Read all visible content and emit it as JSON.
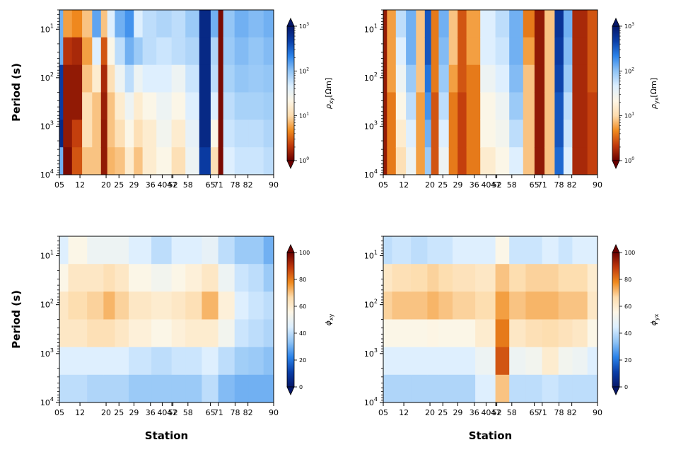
{
  "chart_data": [
    {
      "type": "heatmap",
      "panel": "rho_xy",
      "xlabel": "",
      "ylabel": "Period (s)",
      "x_tick_labels": [
        "05",
        "12",
        "20",
        "25",
        "29",
        "36",
        "40",
        "47",
        "52",
        "58",
        "65",
        "71",
        "78",
        "82",
        "90"
      ],
      "x_range": [
        5,
        90
      ],
      "y_scale": "log",
      "y_range_s": [
        4,
        10000
      ],
      "y_inverted": true,
      "y_tick_values": [
        10,
        100,
        1000,
        10000
      ],
      "colorbar": {
        "label": "ρxy[Ωm]",
        "label_main": "ρ",
        "label_sub": "xy",
        "label_unit": "[Ωm]",
        "scale": "log",
        "range": [
          1,
          1000
        ],
        "tick_values": [
          1,
          10,
          100,
          1000
        ],
        "extend": "both",
        "colormap": "orange-white-blue",
        "colors": [
          "#6b0000",
          "#c0390c",
          "#f08a1e",
          "#fddcad",
          "#fdf6e6",
          "#dcefff",
          "#8fc3f5",
          "#2b83ea",
          "#0a3ea7",
          "#05176a"
        ]
      },
      "station_rows": [
        {
          "station": 5,
          "band_values": [
            0.7,
            0.7,
            0.9,
            0.9,
            0.95,
            0.7
          ]
        },
        {
          "station": 8,
          "band_values": [
            0.25,
            0.1,
            0.05,
            0.05,
            0.05,
            0.02
          ]
        },
        {
          "station": 12,
          "band_values": [
            0.22,
            0.08,
            0.05,
            0.05,
            0.12,
            0.15
          ]
        },
        {
          "station": 16,
          "band_values": [
            0.3,
            0.25,
            0.3,
            0.35,
            0.35,
            0.3
          ]
        },
        {
          "station": 20,
          "band_values": [
            0.72,
            0.55,
            0.4,
            0.3,
            0.3,
            0.3
          ]
        },
        {
          "station": 23,
          "band_values": [
            0.3,
            0.15,
            0.08,
            0.06,
            0.05,
            0.05
          ]
        },
        {
          "station": 25,
          "band_values": [
            0.55,
            0.45,
            0.35,
            0.3,
            0.3,
            0.28
          ]
        },
        {
          "station": 29,
          "band_values": [
            0.7,
            0.6,
            0.5,
            0.4,
            0.35,
            0.3
          ]
        },
        {
          "station": 33,
          "band_values": [
            0.75,
            0.7,
            0.6,
            0.5,
            0.45,
            0.4
          ]
        },
        {
          "station": 36,
          "band_values": [
            0.55,
            0.65,
            0.5,
            0.4,
            0.35,
            0.3
          ]
        },
        {
          "station": 40,
          "band_values": [
            0.6,
            0.6,
            0.55,
            0.45,
            0.4,
            0.4
          ]
        },
        {
          "station": 47,
          "band_values": [
            0.62,
            0.58,
            0.55,
            0.5,
            0.48,
            0.45
          ]
        },
        {
          "station": 52,
          "band_values": [
            0.6,
            0.6,
            0.5,
            0.45,
            0.4,
            0.35
          ]
        },
        {
          "station": 58,
          "band_values": [
            0.65,
            0.62,
            0.58,
            0.55,
            0.52,
            0.5
          ]
        },
        {
          "station": 63,
          "band_values": [
            0.95,
            0.95,
            0.95,
            0.95,
            0.95,
            0.9
          ]
        },
        {
          "station": 67,
          "band_values": [
            0.7,
            0.62,
            0.6,
            0.55,
            0.45,
            0.35
          ]
        },
        {
          "station": 69,
          "band_values": [
            0.02,
            0.02,
            0.02,
            0.02,
            0.02,
            0.02
          ]
        },
        {
          "station": 71,
          "band_values": [
            0.66,
            0.65,
            0.63,
            0.6,
            0.58,
            0.55
          ]
        },
        {
          "station": 78,
          "band_values": [
            0.7,
            0.68,
            0.66,
            0.63,
            0.6,
            0.58
          ]
        },
        {
          "station": 82,
          "band_values": [
            0.68,
            0.66,
            0.65,
            0.63,
            0.6,
            0.58
          ]
        },
        {
          "station": 90,
          "band_values": [
            0.7,
            0.68,
            0.66,
            0.64,
            0.62,
            0.6
          ]
        }
      ]
    },
    {
      "type": "heatmap",
      "panel": "rho_yx",
      "xlabel": "",
      "ylabel": "",
      "x_tick_labels": [
        "05",
        "12",
        "20",
        "25",
        "29",
        "36",
        "40",
        "47",
        "52",
        "58",
        "65",
        "71",
        "78",
        "82",
        "90"
      ],
      "x_range": [
        5,
        90
      ],
      "y_scale": "log",
      "y_range_s": [
        4,
        10000
      ],
      "y_inverted": true,
      "y_tick_values": [
        10,
        100,
        1000,
        10000
      ],
      "colorbar": {
        "label": "ρyx[Ωm]",
        "label_main": "ρ",
        "label_sub": "yx",
        "label_unit": "[Ωm]",
        "scale": "log",
        "range": [
          1,
          1000
        ],
        "tick_values": [
          1,
          10,
          100,
          1000
        ],
        "extend": "both",
        "colormap": "orange-white-blue",
        "colors": [
          "#6b0000",
          "#c0390c",
          "#f08a1e",
          "#fddcad",
          "#fdf6e6",
          "#dcefff",
          "#8fc3f5",
          "#2b83ea",
          "#0a3ea7",
          "#05176a"
        ]
      },
      "station_rows": [
        {
          "station": 5,
          "band_values": [
            0.05,
            0.05,
            0.05,
            0.05,
            0.05,
            0.05
          ]
        },
        {
          "station": 8,
          "band_values": [
            0.25,
            0.25,
            0.25,
            0.2,
            0.2,
            0.2
          ]
        },
        {
          "station": 12,
          "band_values": [
            0.6,
            0.55,
            0.5,
            0.45,
            0.4,
            0.35
          ]
        },
        {
          "station": 16,
          "band_values": [
            0.7,
            0.7,
            0.65,
            0.6,
            0.55,
            0.5
          ]
        },
        {
          "station": 20,
          "band_values": [
            0.3,
            0.3,
            0.3,
            0.25,
            0.25,
            0.25
          ]
        },
        {
          "station": 23,
          "band_values": [
            0.85,
            0.85,
            0.8,
            0.75,
            0.7,
            0.65
          ]
        },
        {
          "station": 25,
          "band_values": [
            0.2,
            0.2,
            0.2,
            0.15,
            0.15,
            0.15
          ]
        },
        {
          "station": 29,
          "band_values": [
            0.7,
            0.68,
            0.65,
            0.6,
            0.55,
            0.5
          ]
        },
        {
          "station": 33,
          "band_values": [
            0.3,
            0.3,
            0.25,
            0.2,
            0.2,
            0.2
          ]
        },
        {
          "station": 36,
          "band_values": [
            0.15,
            0.15,
            0.15,
            0.12,
            0.12,
            0.12
          ]
        },
        {
          "station": 40,
          "band_values": [
            0.25,
            0.25,
            0.2,
            0.2,
            0.2,
            0.2
          ]
        },
        {
          "station": 47,
          "band_values": [
            0.55,
            0.55,
            0.5,
            0.45,
            0.45,
            0.4
          ]
        },
        {
          "station": 52,
          "band_values": [
            0.6,
            0.58,
            0.55,
            0.5,
            0.48,
            0.45
          ]
        },
        {
          "station": 58,
          "band_values": [
            0.7,
            0.7,
            0.68,
            0.65,
            0.6,
            0.55
          ]
        },
        {
          "station": 63,
          "band_values": [
            0.2,
            0.25,
            0.3,
            0.3,
            0.3,
            0.3
          ]
        },
        {
          "station": 67,
          "band_values": [
            0.05,
            0.05,
            0.05,
            0.05,
            0.05,
            0.05
          ]
        },
        {
          "station": 71,
          "band_values": [
            0.3,
            0.3,
            0.3,
            0.3,
            0.3,
            0.3
          ]
        },
        {
          "station": 75,
          "band_values": [
            0.92,
            0.9,
            0.88,
            0.85,
            0.85,
            0.82
          ]
        },
        {
          "station": 78,
          "band_values": [
            0.7,
            0.68,
            0.65,
            0.6,
            0.58,
            0.55
          ]
        },
        {
          "station": 82,
          "band_values": [
            0.08,
            0.08,
            0.08,
            0.08,
            0.08,
            0.08
          ]
        },
        {
          "station": 90,
          "band_values": [
            0.15,
            0.15,
            0.15,
            0.12,
            0.12,
            0.12
          ]
        }
      ]
    },
    {
      "type": "heatmap",
      "panel": "phi_xy",
      "xlabel": "Station",
      "ylabel": "Period (s)",
      "x_tick_labels": [
        "05",
        "12",
        "20",
        "25",
        "29",
        "36",
        "40",
        "47",
        "52",
        "58",
        "65",
        "71",
        "78",
        "82",
        "90"
      ],
      "x_range": [
        5,
        90
      ],
      "y_scale": "log",
      "y_range_s": [
        4,
        10000
      ],
      "y_inverted": true,
      "y_tick_values": [
        10,
        100,
        1000,
        10000
      ],
      "colorbar": {
        "label": "ϕxy",
        "label_main": "ϕ",
        "label_sub": "xy",
        "label_unit": "",
        "scale": "linear",
        "range": [
          0,
          100
        ],
        "tick_values": [
          0,
          20,
          40,
          60,
          80,
          100
        ],
        "extend": "both",
        "colormap": "blue-white-orange",
        "colors": [
          "#05176a",
          "#0a3ea7",
          "#2b83ea",
          "#8fc3f5",
          "#dcefff",
          "#fdf6e6",
          "#fddcad",
          "#f08a1e",
          "#c0390c",
          "#6b0000"
        ]
      },
      "station_rows": [
        {
          "station": 5,
          "band_values": [
            0.45,
            0.55,
            0.62,
            0.62,
            0.45,
            0.4
          ]
        },
        {
          "station": 12,
          "band_values": [
            0.55,
            0.62,
            0.66,
            0.62,
            0.45,
            0.4
          ]
        },
        {
          "station": 20,
          "band_values": [
            0.5,
            0.62,
            0.68,
            0.65,
            0.45,
            0.38
          ]
        },
        {
          "station": 25,
          "band_values": [
            0.5,
            0.65,
            0.72,
            0.65,
            0.45,
            0.38
          ]
        },
        {
          "station": 29,
          "band_values": [
            0.5,
            0.62,
            0.68,
            0.62,
            0.45,
            0.38
          ]
        },
        {
          "station": 36,
          "band_values": [
            0.45,
            0.55,
            0.62,
            0.58,
            0.42,
            0.35
          ]
        },
        {
          "station": 47,
          "band_values": [
            0.4,
            0.52,
            0.6,
            0.55,
            0.4,
            0.35
          ]
        },
        {
          "station": 52,
          "band_values": [
            0.45,
            0.55,
            0.62,
            0.58,
            0.42,
            0.35
          ]
        },
        {
          "station": 58,
          "band_values": [
            0.45,
            0.58,
            0.65,
            0.6,
            0.42,
            0.35
          ]
        },
        {
          "station": 65,
          "band_values": [
            0.48,
            0.62,
            0.72,
            0.6,
            0.45,
            0.4
          ]
        },
        {
          "station": 71,
          "band_values": [
            0.4,
            0.5,
            0.58,
            0.52,
            0.4,
            0.32
          ]
        },
        {
          "station": 78,
          "band_values": [
            0.35,
            0.42,
            0.45,
            0.42,
            0.36,
            0.3
          ]
        },
        {
          "station": 82,
          "band_values": [
            0.35,
            0.4,
            0.42,
            0.4,
            0.35,
            0.3
          ]
        },
        {
          "station": 90,
          "band_values": [
            0.3,
            0.35,
            0.4,
            0.38,
            0.33,
            0.3
          ]
        }
      ]
    },
    {
      "type": "heatmap",
      "panel": "phi_yx",
      "xlabel": "Station",
      "ylabel": "",
      "x_tick_labels": [
        "05",
        "12",
        "20",
        "25",
        "29",
        "36",
        "40",
        "47",
        "52",
        "58",
        "65",
        "71",
        "78",
        "82",
        "90"
      ],
      "x_range": [
        5,
        90
      ],
      "y_scale": "log",
      "y_range_s": [
        4,
        10000
      ],
      "y_inverted": true,
      "y_tick_values": [
        10,
        100,
        1000,
        10000
      ],
      "colorbar": {
        "label": "ϕyx",
        "label_main": "ϕ",
        "label_sub": "yx",
        "label_unit": "",
        "scale": "linear",
        "range": [
          0,
          100
        ],
        "tick_values": [
          0,
          20,
          40,
          60,
          80,
          100
        ],
        "extend": "both",
        "colormap": "blue-white-orange",
        "colors": [
          "#05176a",
          "#0a3ea7",
          "#2b83ea",
          "#8fc3f5",
          "#dcefff",
          "#fdf6e6",
          "#fddcad",
          "#f08a1e",
          "#c0390c",
          "#6b0000"
        ]
      },
      "station_rows": [
        {
          "station": 5,
          "band_values": [
            0.4,
            0.62,
            0.68,
            0.55,
            0.45,
            0.38
          ]
        },
        {
          "station": 12,
          "band_values": [
            0.42,
            0.65,
            0.7,
            0.55,
            0.45,
            0.38
          ]
        },
        {
          "station": 20,
          "band_values": [
            0.4,
            0.66,
            0.7,
            0.55,
            0.45,
            0.38
          ]
        },
        {
          "station": 25,
          "band_values": [
            0.42,
            0.68,
            0.72,
            0.56,
            0.45,
            0.38
          ]
        },
        {
          "station": 29,
          "band_values": [
            0.42,
            0.66,
            0.7,
            0.55,
            0.45,
            0.38
          ]
        },
        {
          "station": 36,
          "band_values": [
            0.45,
            0.64,
            0.68,
            0.55,
            0.45,
            0.38
          ]
        },
        {
          "station": 47,
          "band_values": [
            0.45,
            0.62,
            0.66,
            0.6,
            0.5,
            0.45
          ]
        },
        {
          "station": 52,
          "band_values": [
            0.55,
            0.7,
            0.75,
            0.8,
            0.85,
            0.7
          ]
        },
        {
          "station": 58,
          "band_values": [
            0.42,
            0.66,
            0.7,
            0.62,
            0.5,
            0.4
          ]
        },
        {
          "station": 65,
          "band_values": [
            0.42,
            0.68,
            0.72,
            0.65,
            0.52,
            0.4
          ]
        },
        {
          "station": 71,
          "band_values": [
            0.45,
            0.68,
            0.72,
            0.66,
            0.6,
            0.42
          ]
        },
        {
          "station": 78,
          "band_values": [
            0.42,
            0.66,
            0.7,
            0.64,
            0.52,
            0.4
          ]
        },
        {
          "station": 82,
          "band_values": [
            0.45,
            0.66,
            0.7,
            0.62,
            0.5,
            0.4
          ]
        },
        {
          "station": 90,
          "band_values": [
            0.45,
            0.6,
            0.62,
            0.55,
            0.45,
            0.4
          ]
        }
      ]
    }
  ]
}
